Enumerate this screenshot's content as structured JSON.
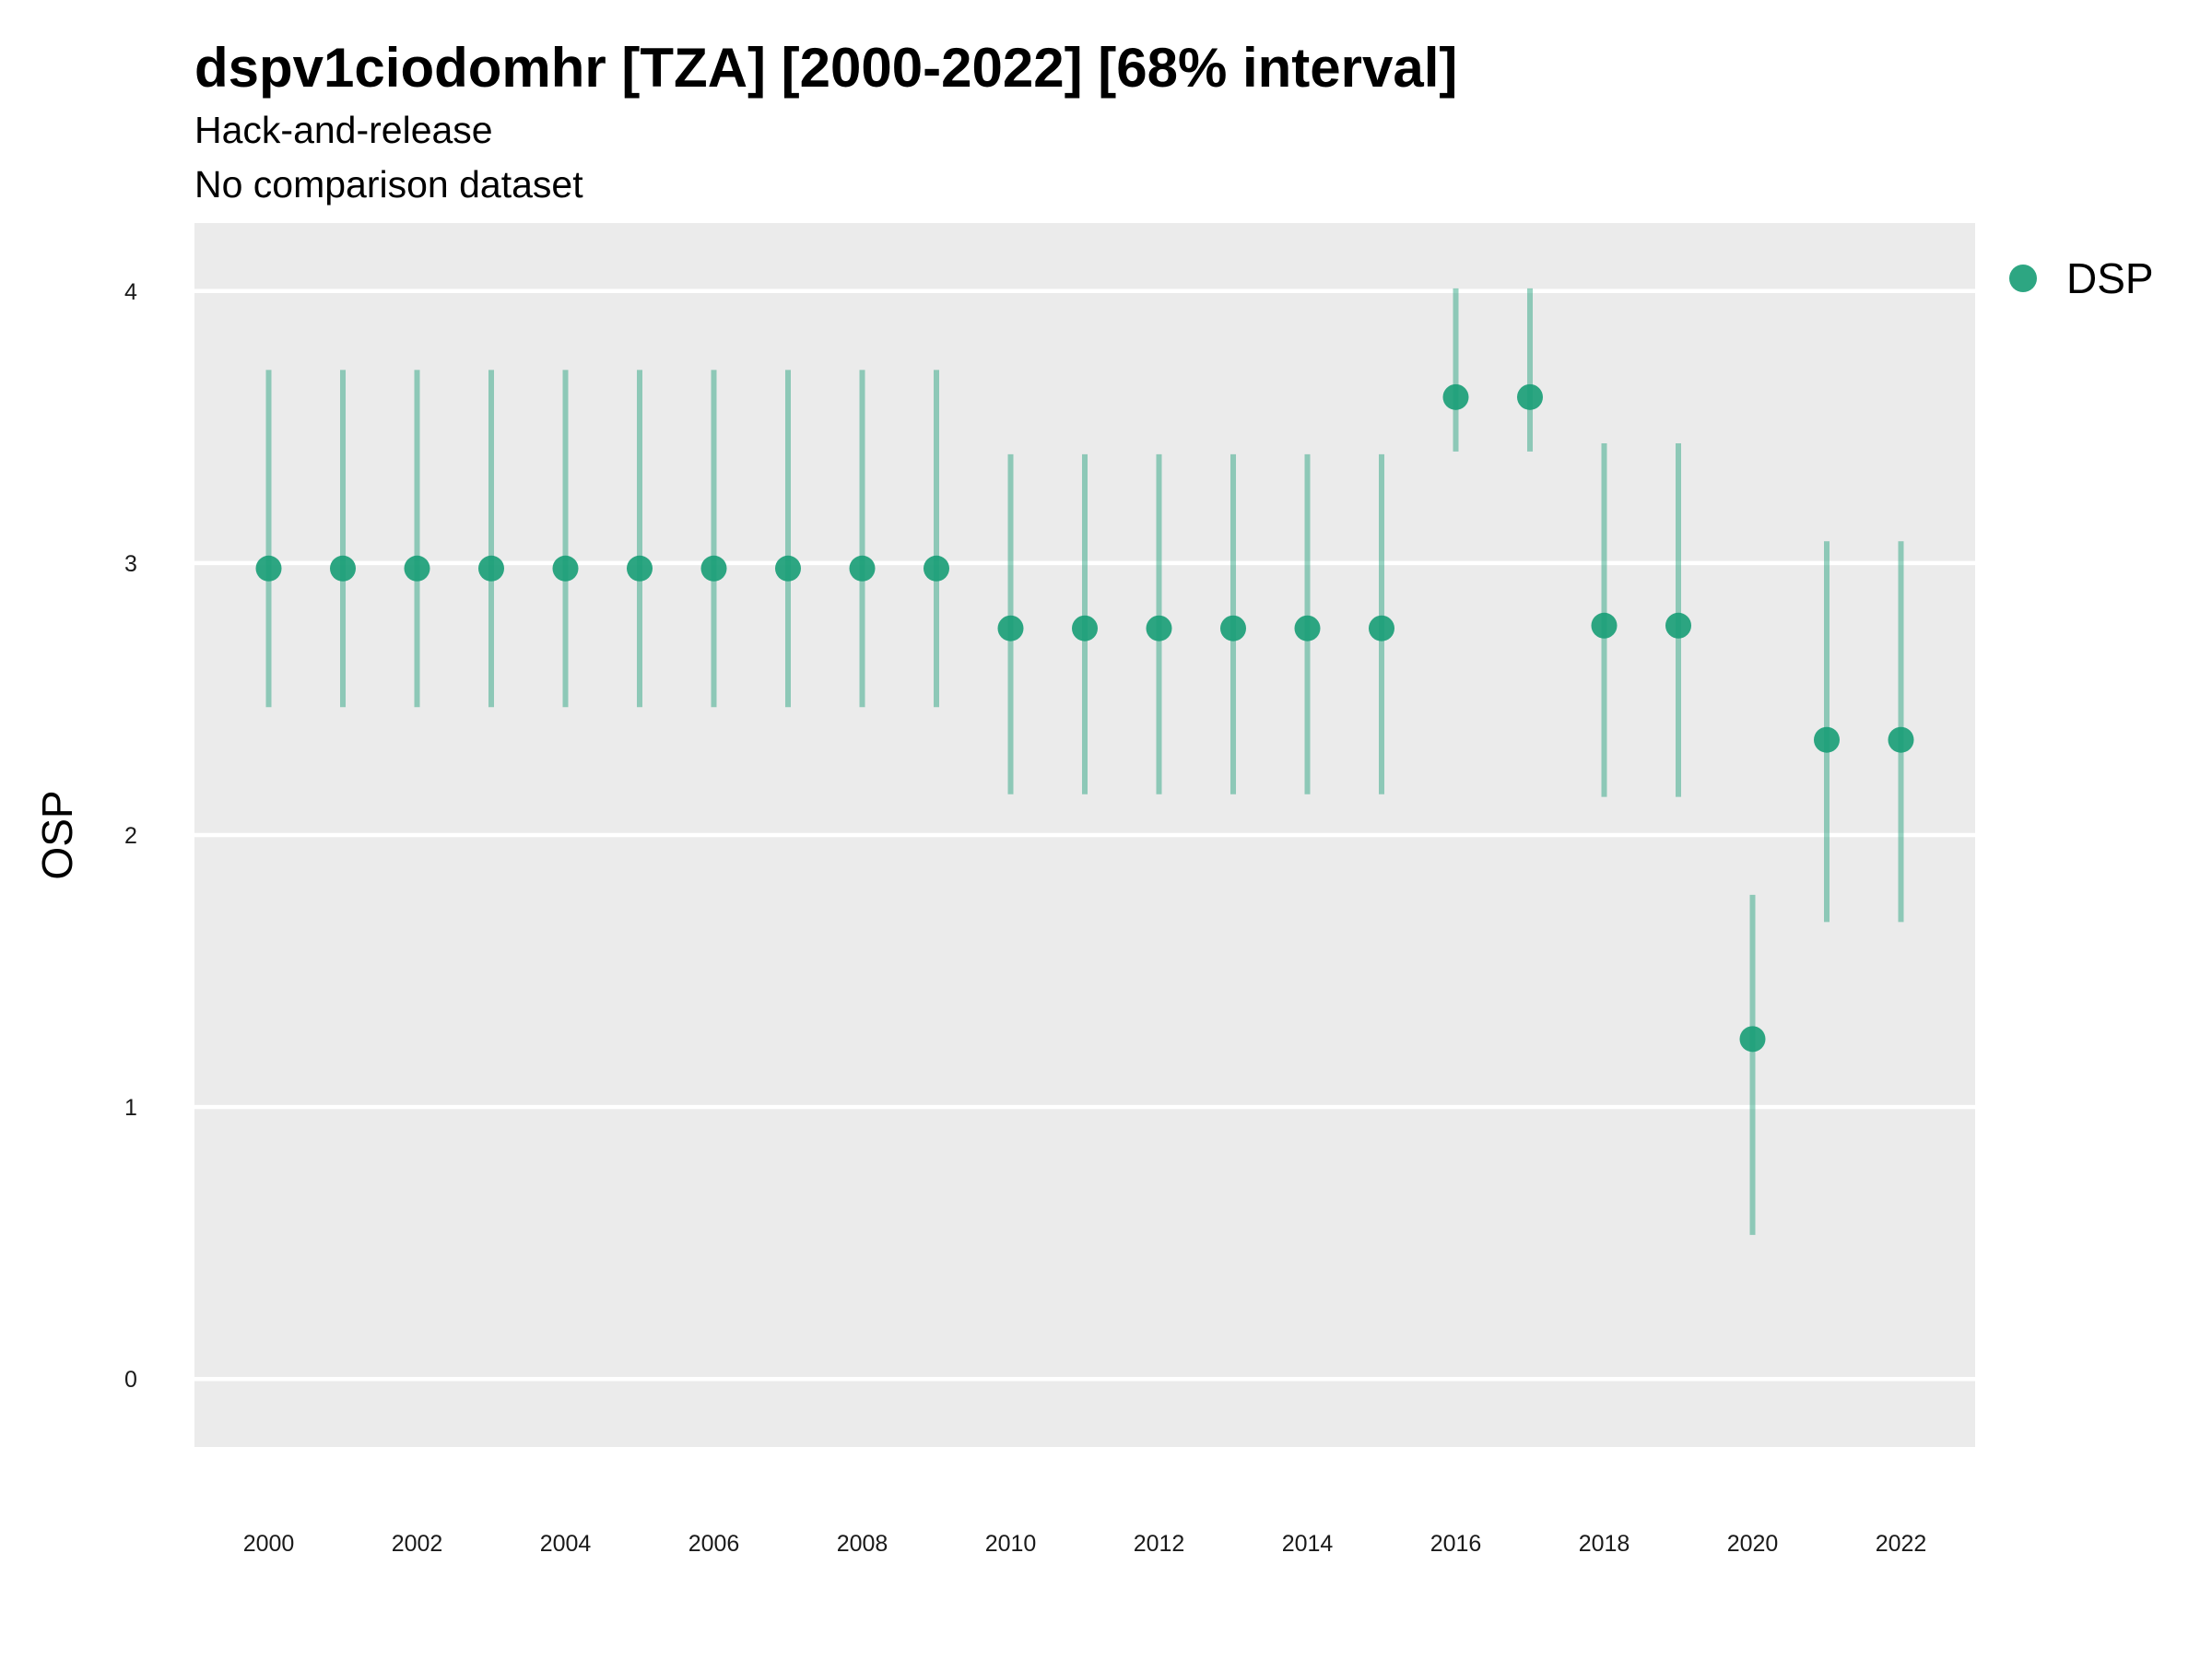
{
  "chart_data": {
    "type": "scatter",
    "title": "dspv1ciodomhr [TZA] [2000-2022] [68% interval]",
    "subtitle_lines": [
      "Hack-and-release",
      "No comparison dataset"
    ],
    "xlabel": "",
    "ylabel": "OSP",
    "xlim": [
      1999,
      2023
    ],
    "ylim": [
      -0.25,
      4.25
    ],
    "y_ticks": [
      "0",
      "1",
      "2",
      "3",
      "4"
    ],
    "x_ticks": [
      "2000",
      "2002",
      "2004",
      "2006",
      "2008",
      "2010",
      "2012",
      "2014",
      "2016",
      "2018",
      "2020",
      "2022"
    ],
    "grid": "horizontal major only",
    "legend_position": "right",
    "colors": {
      "series": "#1b9e77",
      "panel_background": "#ebebeb",
      "gridline": "#ffffff"
    },
    "series": [
      {
        "name": "DSP",
        "points": [
          {
            "x": 2000,
            "y": 2.98,
            "lower": 2.47,
            "upper": 3.71
          },
          {
            "x": 2001,
            "y": 2.98,
            "lower": 2.47,
            "upper": 3.71
          },
          {
            "x": 2002,
            "y": 2.98,
            "lower": 2.47,
            "upper": 3.71
          },
          {
            "x": 2003,
            "y": 2.98,
            "lower": 2.47,
            "upper": 3.71
          },
          {
            "x": 2004,
            "y": 2.98,
            "lower": 2.47,
            "upper": 3.71
          },
          {
            "x": 2005,
            "y": 2.98,
            "lower": 2.47,
            "upper": 3.71
          },
          {
            "x": 2006,
            "y": 2.98,
            "lower": 2.47,
            "upper": 3.71
          },
          {
            "x": 2007,
            "y": 2.98,
            "lower": 2.47,
            "upper": 3.71
          },
          {
            "x": 2008,
            "y": 2.98,
            "lower": 2.47,
            "upper": 3.71
          },
          {
            "x": 2009,
            "y": 2.98,
            "lower": 2.47,
            "upper": 3.71
          },
          {
            "x": 2010,
            "y": 2.76,
            "lower": 2.15,
            "upper": 3.4
          },
          {
            "x": 2011,
            "y": 2.76,
            "lower": 2.15,
            "upper": 3.4
          },
          {
            "x": 2012,
            "y": 2.76,
            "lower": 2.15,
            "upper": 3.4
          },
          {
            "x": 2013,
            "y": 2.76,
            "lower": 2.15,
            "upper": 3.4
          },
          {
            "x": 2014,
            "y": 2.76,
            "lower": 2.15,
            "upper": 3.4
          },
          {
            "x": 2015,
            "y": 2.76,
            "lower": 2.15,
            "upper": 3.4
          },
          {
            "x": 2016,
            "y": 3.61,
            "lower": 3.41,
            "upper": 4.01
          },
          {
            "x": 2017,
            "y": 3.61,
            "lower": 3.41,
            "upper": 4.01
          },
          {
            "x": 2018,
            "y": 2.77,
            "lower": 2.14,
            "upper": 3.44
          },
          {
            "x": 2019,
            "y": 2.77,
            "lower": 2.14,
            "upper": 3.44
          },
          {
            "x": 2020,
            "y": 1.25,
            "lower": 0.53,
            "upper": 1.78
          },
          {
            "x": 2021,
            "y": 2.35,
            "lower": 1.68,
            "upper": 3.08
          },
          {
            "x": 2022,
            "y": 2.35,
            "lower": 1.68,
            "upper": 3.08
          }
        ]
      }
    ]
  }
}
